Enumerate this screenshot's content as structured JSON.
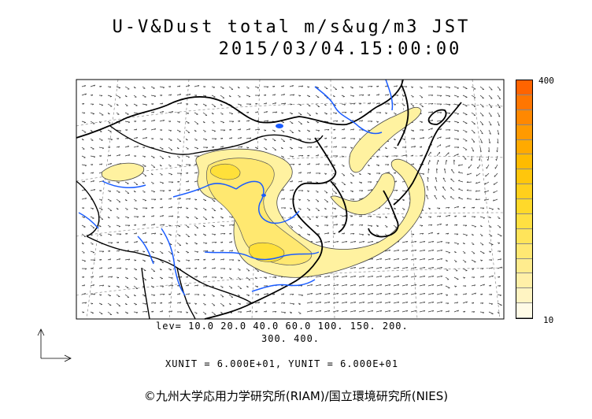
{
  "title": {
    "line1": "U-V&Dust total m/s&ug/m3 JST",
    "line2": "2015/03/04.15:00:00"
  },
  "colorbar": {
    "max_label": "400",
    "min_label": "10",
    "colors": [
      "#fffbe6",
      "#fff4c2",
      "#fff0a8",
      "#ffec8e",
      "#ffe873",
      "#ffe45a",
      "#ffe042",
      "#ffd92a",
      "#ffd01c",
      "#ffc60c",
      "#ffbb00",
      "#ffaa00",
      "#ff9a00",
      "#ff8800",
      "#ff7600",
      "#ff6400"
    ]
  },
  "levels": {
    "line1": "lev= 10.0 20.0 40.0 60.0 100. 150. 200.",
    "line2": "300. 400."
  },
  "units_text": "XUNIT = 6.000E+01, YUNIT = 6.000E+01",
  "copyright": "©九州大学応用力学研究所(RIAM)/国立環境研究所(NIES)",
  "map_style": {
    "dust_fill": "#fff2a0",
    "dust_core": "#ffe03a",
    "river_color": "#1a5cff",
    "border_color": "#000000"
  }
}
